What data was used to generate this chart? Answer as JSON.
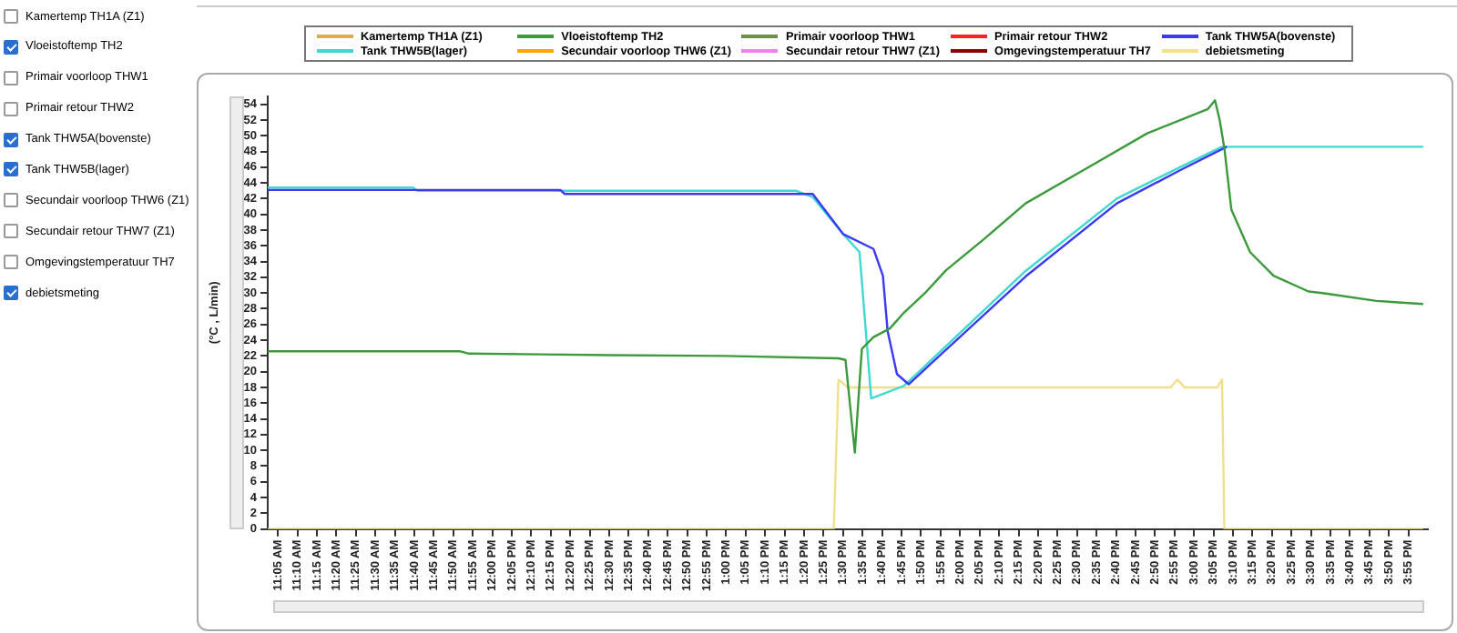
{
  "chart_data": {
    "type": "line",
    "ylabel": "(°C , L/min)",
    "legend": "top",
    "grid": false,
    "xlim": [
      11.04,
      16.0
    ],
    "ylim": [
      0,
      55
    ],
    "yticks": [
      0,
      2,
      4,
      6,
      8,
      10,
      12,
      14,
      16,
      18,
      20,
      22,
      24,
      26,
      28,
      30,
      32,
      34,
      36,
      38,
      40,
      42,
      44,
      46,
      48,
      50,
      52,
      54
    ],
    "xticks": [
      {
        "value": 11.0833,
        "label": "11:05 AM"
      },
      {
        "value": 11.1667,
        "label": "11:10 AM"
      },
      {
        "value": 11.25,
        "label": "11:15 AM"
      },
      {
        "value": 11.3333,
        "label": "11:20 AM"
      },
      {
        "value": 11.4167,
        "label": "11:25 AM"
      },
      {
        "value": 11.5,
        "label": "11:30 AM"
      },
      {
        "value": 11.5833,
        "label": "11:35 AM"
      },
      {
        "value": 11.6667,
        "label": "11:40 AM"
      },
      {
        "value": 11.75,
        "label": "11:45 AM"
      },
      {
        "value": 11.8333,
        "label": "11:50 AM"
      },
      {
        "value": 11.9167,
        "label": "11:55 AM"
      },
      {
        "value": 12,
        "label": "12:00 PM"
      },
      {
        "value": 12.0833,
        "label": "12:05 PM"
      },
      {
        "value": 12.1667,
        "label": "12:10 PM"
      },
      {
        "value": 12.25,
        "label": "12:15 PM"
      },
      {
        "value": 12.3333,
        "label": "12:20 PM"
      },
      {
        "value": 12.4167,
        "label": "12:25 PM"
      },
      {
        "value": 12.5,
        "label": "12:30 PM"
      },
      {
        "value": 12.5833,
        "label": "12:35 PM"
      },
      {
        "value": 12.6667,
        "label": "12:40 PM"
      },
      {
        "value": 12.75,
        "label": "12:45 PM"
      },
      {
        "value": 12.8333,
        "label": "12:50 PM"
      },
      {
        "value": 12.9167,
        "label": "12:55 PM"
      },
      {
        "value": 13,
        "label": "1:00 PM"
      },
      {
        "value": 13.0833,
        "label": "1:05 PM"
      },
      {
        "value": 13.1667,
        "label": "1:10 PM"
      },
      {
        "value": 13.25,
        "label": "1:15 PM"
      },
      {
        "value": 13.3333,
        "label": "1:20 PM"
      },
      {
        "value": 13.4167,
        "label": "1:25 PM"
      },
      {
        "value": 13.5,
        "label": "1:30 PM"
      },
      {
        "value": 13.5833,
        "label": "1:35 PM"
      },
      {
        "value": 13.6667,
        "label": "1:40 PM"
      },
      {
        "value": 13.75,
        "label": "1:45 PM"
      },
      {
        "value": 13.8333,
        "label": "1:50 PM"
      },
      {
        "value": 13.9167,
        "label": "1:55 PM"
      },
      {
        "value": 14,
        "label": "2:00 PM"
      },
      {
        "value": 14.0833,
        "label": "2:05 PM"
      },
      {
        "value": 14.1667,
        "label": "2:10 PM"
      },
      {
        "value": 14.25,
        "label": "2:15 PM"
      },
      {
        "value": 14.3333,
        "label": "2:20 PM"
      },
      {
        "value": 14.4167,
        "label": "2:25 PM"
      },
      {
        "value": 14.5,
        "label": "2:30 PM"
      },
      {
        "value": 14.5833,
        "label": "2:35 PM"
      },
      {
        "value": 14.6667,
        "label": "2:40 PM"
      },
      {
        "value": 14.75,
        "label": "2:45 PM"
      },
      {
        "value": 14.8333,
        "label": "2:50 PM"
      },
      {
        "value": 14.9167,
        "label": "2:55 PM"
      },
      {
        "value": 15,
        "label": "3:00 PM"
      },
      {
        "value": 15.0833,
        "label": "3:05 PM"
      },
      {
        "value": 15.1667,
        "label": "3:10 PM"
      },
      {
        "value": 15.25,
        "label": "3:15 PM"
      },
      {
        "value": 15.3333,
        "label": "3:20 PM"
      },
      {
        "value": 15.4167,
        "label": "3:25 PM"
      },
      {
        "value": 15.5,
        "label": "3:30 PM"
      },
      {
        "value": 15.5833,
        "label": "3:35 PM"
      },
      {
        "value": 15.6667,
        "label": "3:40 PM"
      },
      {
        "value": 15.75,
        "label": "3:45 PM"
      },
      {
        "value": 15.8333,
        "label": "3:50 PM"
      },
      {
        "value": 15.9167,
        "label": "3:55 PM"
      }
    ],
    "series": [
      {
        "name": "Kamertemp  TH1A (Z1)",
        "color": "#e0a850"
      },
      {
        "name": "Vloeistoftemp TH2",
        "color": "#3c9a3c",
        "x": [
          11.04,
          11.86,
          11.9,
          12.21,
          12.5,
          13.0,
          13.48,
          13.51,
          13.55,
          13.58,
          13.63,
          13.7,
          13.76,
          13.85,
          13.94,
          14.1,
          14.28,
          14.55,
          14.8,
          15.06,
          15.09,
          15.11,
          15.13,
          15.16,
          15.24,
          15.34,
          15.49,
          15.55,
          15.78,
          15.98
        ],
        "values": [
          22.6,
          22.6,
          22.3,
          22.2,
          22.1,
          22,
          21.7,
          21.5,
          9.7,
          22.9,
          24.4,
          25.5,
          27.5,
          30,
          32.9,
          36.8,
          41.4,
          46,
          50.3,
          53.4,
          54.5,
          52,
          48.4,
          40.6,
          35.2,
          32.2,
          30.2,
          30,
          29,
          28.6
        ]
      },
      {
        "name": "Primair voorloop THW1",
        "color": "#6b8e4e"
      },
      {
        "name": "Primair retour THW2",
        "color": "#ff2020"
      },
      {
        "name": "Tank THW5A(bovenste)",
        "color": "#3a3af0",
        "x": [
          11.04,
          12.29,
          12.31,
          13.37,
          13.5,
          13.63,
          13.67,
          13.69,
          13.73,
          13.78,
          14.28,
          14.67,
          14.94,
          15.14
        ],
        "values": [
          43.1,
          43.1,
          42.6,
          42.6,
          37.5,
          35.6,
          32.2,
          25.2,
          19.7,
          18.4,
          32.1,
          41.4,
          45.6,
          48.6
        ]
      },
      {
        "name": "Tank THW5B(lager)",
        "color": "#40d8d0",
        "x": [
          11.04,
          11.66,
          11.68,
          13.3,
          13.37,
          13.5,
          13.57,
          13.62,
          13.76,
          14.28,
          14.67,
          14.94,
          15.12,
          15.98
        ],
        "values": [
          43.4,
          43.4,
          43,
          43,
          42.2,
          37.5,
          35.2,
          16.6,
          18.2,
          32.8,
          42,
          46,
          48.6,
          48.6
        ]
      },
      {
        "name": "Secundair voorloop THW6 (Z1)",
        "color": "#ffa500"
      },
      {
        "name": "Secundair retour THW7 (Z1)",
        "color": "#ee82ee"
      },
      {
        "name": "Omgevingstemperatuur TH7",
        "color": "#8b0000"
      },
      {
        "name": "debietsmeting",
        "color": "#f0e08c",
        "x": [
          11.04,
          13.46,
          13.48,
          13.52,
          13.9,
          14.9,
          14.93,
          14.96,
          15.1,
          15.12,
          15.13,
          15.98
        ],
        "values": [
          0,
          0,
          19,
          18,
          18,
          18,
          19,
          18,
          18,
          19,
          0,
          0
        ]
      }
    ]
  }
}
